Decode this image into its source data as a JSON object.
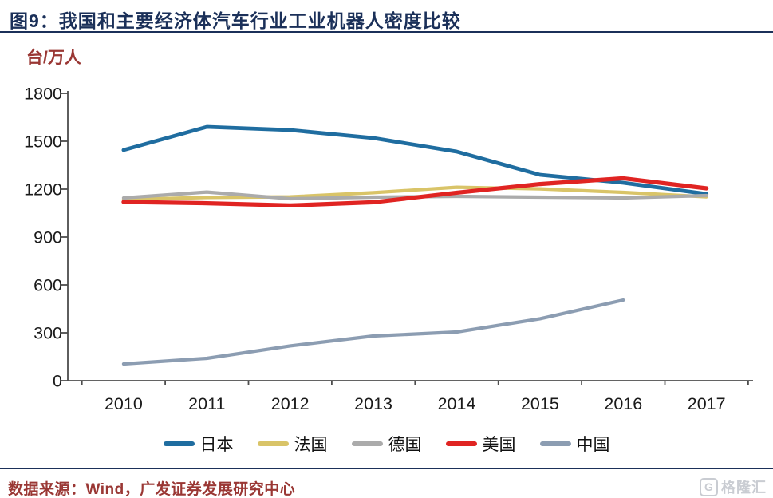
{
  "title": "图9：我国和主要经济体汽车行业工业机器人密度比较",
  "unit_label": "台/万人",
  "footer": {
    "source": "数据来源：Wind，广发证券发展研究中心",
    "watermark_g": "G",
    "watermark_text": "格隆汇"
  },
  "colors": {
    "title_navy": "#1B3059",
    "accent_dark_red": "#9A3734",
    "axis": "#4D4D4D",
    "tick_label": "#1A1A1A"
  },
  "chart_data": {
    "type": "line",
    "title": "我国和主要经济体汽车行业工业机器人密度比较",
    "xlabel": "",
    "ylabel": "台/万人",
    "categories": [
      "2010",
      "2011",
      "2012",
      "2013",
      "2014",
      "2015",
      "2016",
      "2017"
    ],
    "ylim": [
      0,
      1800
    ],
    "y_ticks": [
      0,
      300,
      600,
      900,
      1200,
      1500,
      1800
    ],
    "grid": false,
    "legend_position": "bottom",
    "series": [
      {
        "name": "日本",
        "color": "#1F6DA0",
        "values": [
          1445,
          1590,
          1570,
          1520,
          1435,
          1290,
          1240,
          1170
        ]
      },
      {
        "name": "法国",
        "color": "#D9C468",
        "values": [
          1135,
          1148,
          1152,
          1178,
          1212,
          1202,
          1180,
          1152
        ]
      },
      {
        "name": "德国",
        "color": "#ABABAB",
        "values": [
          1145,
          1182,
          1140,
          1150,
          1155,
          1150,
          1145,
          1160
        ]
      },
      {
        "name": "美国",
        "color": "#E02422",
        "values": [
          1120,
          1112,
          1098,
          1118,
          1178,
          1232,
          1268,
          1205
        ]
      },
      {
        "name": "中国",
        "color": "#8C9DB2",
        "values": [
          105,
          140,
          218,
          280,
          305,
          388,
          505,
          null
        ]
      }
    ]
  }
}
